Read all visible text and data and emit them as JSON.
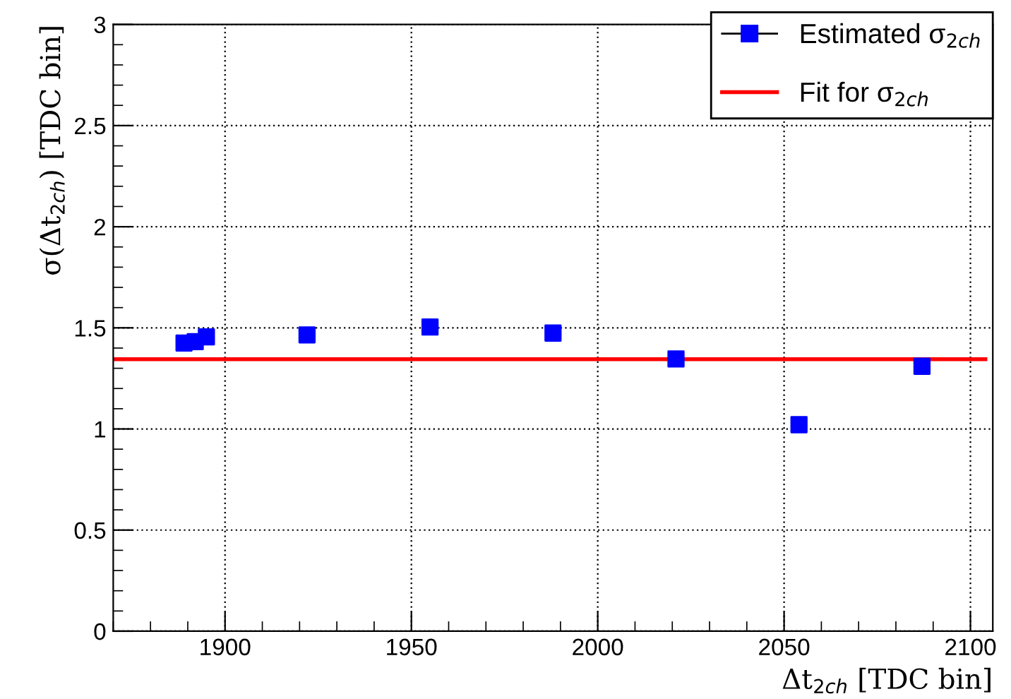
{
  "chart_data": {
    "type": "scatter",
    "xlabel": "Δt$_{2ch}$ [TDC bin]",
    "ylabel": "σ(Δt$_{2ch}$) [TDC bin]",
    "series": [
      {
        "name": "Estimated σ$_{2ch}$",
        "color": "#0000ff",
        "marker": "square",
        "x": [
          1889,
          1892,
          1895,
          1922,
          1955,
          1988,
          2021,
          2054,
          2087
        ],
        "values": [
          1.425,
          1.432,
          1.455,
          1.465,
          1.504,
          1.474,
          1.346,
          1.021,
          1.31
        ]
      },
      {
        "name": "Fit for σ$_{2ch}$",
        "type": "line",
        "color": "#ff0000",
        "marker": "none",
        "x": [
          1870,
          2104
        ],
        "values": [
          1.345,
          1.345
        ]
      }
    ],
    "xlim": [
      1870,
      2106
    ],
    "xticks": [
      1900,
      1950,
      2000,
      2050,
      2100
    ],
    "ylim": [
      0,
      3
    ],
    "yticks": [
      0,
      0.5,
      1,
      1.5,
      2,
      2.5,
      3
    ],
    "grid": true,
    "legend": "top right"
  }
}
